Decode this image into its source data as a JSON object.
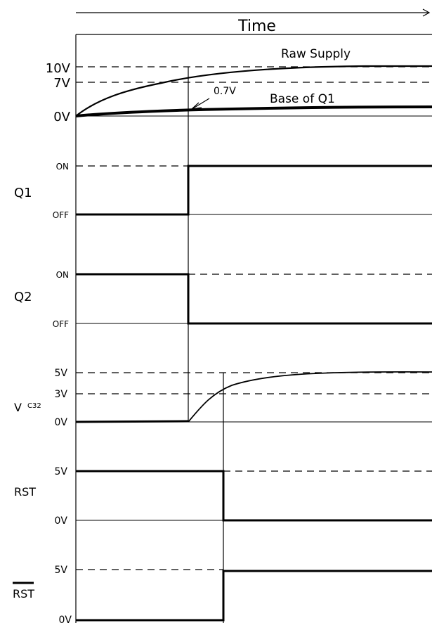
{
  "time_label": "Time",
  "supply_panel": {
    "raw_supply_label": "Raw Supply",
    "base_q1_label": "Base of Q1",
    "threshold_annotation": "0.7V",
    "levels": [
      "10V",
      "7V",
      "0V"
    ]
  },
  "q1": {
    "label": "Q1",
    "on_label": "ON",
    "off_label": "OFF"
  },
  "q2": {
    "label": "Q2",
    "on_label": "ON",
    "off_label": "OFF"
  },
  "vc32": {
    "label_main": "V",
    "label_sub": "C32",
    "levels": [
      "5V",
      "3V",
      "0V"
    ]
  },
  "rst": {
    "label": "RST",
    "high_label": "5V",
    "low_label": "0V"
  },
  "rst_bar": {
    "label": "RST",
    "high_label": "5V",
    "low_label": "0V"
  }
}
